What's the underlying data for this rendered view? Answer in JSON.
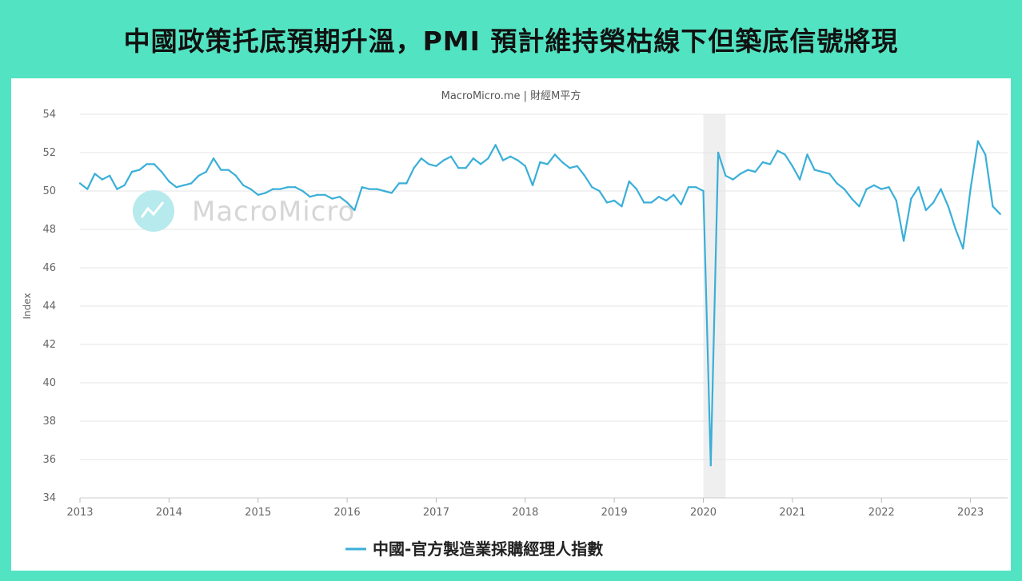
{
  "headline": "中國政策托底預期升溫，PMI 預計維持榮枯線下但築底信號將現",
  "source_label": "MacroMicro.me | 財經M平方",
  "watermark": "MacroMicro",
  "colors": {
    "background": "#52e3c2",
    "series": "#3aafd8",
    "recession_band": "#efefef",
    "grid": "#e6e6e6"
  },
  "chart_data": {
    "type": "line",
    "title": "",
    "xlabel": "",
    "ylabel": "Index",
    "ylim": [
      34,
      54
    ],
    "yticks": [
      34,
      36,
      38,
      40,
      42,
      44,
      46,
      48,
      50,
      52,
      54
    ],
    "xticks": [
      "2013",
      "2014",
      "2015",
      "2016",
      "2017",
      "2018",
      "2019",
      "2020",
      "2021",
      "2022",
      "2023"
    ],
    "xlim": [
      "2013-01",
      "2023-06"
    ],
    "shaded_periods": [
      {
        "start": "2020-01",
        "end": "2020-04"
      }
    ],
    "legend_position": "bottom-center",
    "grid": true,
    "series": [
      {
        "name": "中國-官方製造業採購經理人指數",
        "color": "#3aafd8",
        "points": [
          [
            "2013-01",
            50.4
          ],
          [
            "2013-02",
            50.1
          ],
          [
            "2013-03",
            50.9
          ],
          [
            "2013-04",
            50.6
          ],
          [
            "2013-05",
            50.8
          ],
          [
            "2013-06",
            50.1
          ],
          [
            "2013-07",
            50.3
          ],
          [
            "2013-08",
            51.0
          ],
          [
            "2013-09",
            51.1
          ],
          [
            "2013-10",
            51.4
          ],
          [
            "2013-11",
            51.4
          ],
          [
            "2013-12",
            51.0
          ],
          [
            "2014-01",
            50.5
          ],
          [
            "2014-02",
            50.2
          ],
          [
            "2014-03",
            50.3
          ],
          [
            "2014-04",
            50.4
          ],
          [
            "2014-05",
            50.8
          ],
          [
            "2014-06",
            51.0
          ],
          [
            "2014-07",
            51.7
          ],
          [
            "2014-08",
            51.1
          ],
          [
            "2014-09",
            51.1
          ],
          [
            "2014-10",
            50.8
          ],
          [
            "2014-11",
            50.3
          ],
          [
            "2014-12",
            50.1
          ],
          [
            "2015-01",
            49.8
          ],
          [
            "2015-02",
            49.9
          ],
          [
            "2015-03",
            50.1
          ],
          [
            "2015-04",
            50.1
          ],
          [
            "2015-05",
            50.2
          ],
          [
            "2015-06",
            50.2
          ],
          [
            "2015-07",
            50.0
          ],
          [
            "2015-08",
            49.7
          ],
          [
            "2015-09",
            49.8
          ],
          [
            "2015-10",
            49.8
          ],
          [
            "2015-11",
            49.6
          ],
          [
            "2015-12",
            49.7
          ],
          [
            "2016-01",
            49.4
          ],
          [
            "2016-02",
            49.0
          ],
          [
            "2016-03",
            50.2
          ],
          [
            "2016-04",
            50.1
          ],
          [
            "2016-05",
            50.1
          ],
          [
            "2016-06",
            50.0
          ],
          [
            "2016-07",
            49.9
          ],
          [
            "2016-08",
            50.4
          ],
          [
            "2016-09",
            50.4
          ],
          [
            "2016-10",
            51.2
          ],
          [
            "2016-11",
            51.7
          ],
          [
            "2016-12",
            51.4
          ],
          [
            "2017-01",
            51.3
          ],
          [
            "2017-02",
            51.6
          ],
          [
            "2017-03",
            51.8
          ],
          [
            "2017-04",
            51.2
          ],
          [
            "2017-05",
            51.2
          ],
          [
            "2017-06",
            51.7
          ],
          [
            "2017-07",
            51.4
          ],
          [
            "2017-08",
            51.7
          ],
          [
            "2017-09",
            52.4
          ],
          [
            "2017-10",
            51.6
          ],
          [
            "2017-11",
            51.8
          ],
          [
            "2017-12",
            51.6
          ],
          [
            "2018-01",
            51.3
          ],
          [
            "2018-02",
            50.3
          ],
          [
            "2018-03",
            51.5
          ],
          [
            "2018-04",
            51.4
          ],
          [
            "2018-05",
            51.9
          ],
          [
            "2018-06",
            51.5
          ],
          [
            "2018-07",
            51.2
          ],
          [
            "2018-08",
            51.3
          ],
          [
            "2018-09",
            50.8
          ],
          [
            "2018-10",
            50.2
          ],
          [
            "2018-11",
            50.0
          ],
          [
            "2018-12",
            49.4
          ],
          [
            "2019-01",
            49.5
          ],
          [
            "2019-02",
            49.2
          ],
          [
            "2019-03",
            50.5
          ],
          [
            "2019-04",
            50.1
          ],
          [
            "2019-05",
            49.4
          ],
          [
            "2019-06",
            49.4
          ],
          [
            "2019-07",
            49.7
          ],
          [
            "2019-08",
            49.5
          ],
          [
            "2019-09",
            49.8
          ],
          [
            "2019-10",
            49.3
          ],
          [
            "2019-11",
            50.2
          ],
          [
            "2019-12",
            50.2
          ],
          [
            "2020-01",
            50.0
          ],
          [
            "2020-02",
            35.7
          ],
          [
            "2020-03",
            52.0
          ],
          [
            "2020-04",
            50.8
          ],
          [
            "2020-05",
            50.6
          ],
          [
            "2020-06",
            50.9
          ],
          [
            "2020-07",
            51.1
          ],
          [
            "2020-08",
            51.0
          ],
          [
            "2020-09",
            51.5
          ],
          [
            "2020-10",
            51.4
          ],
          [
            "2020-11",
            52.1
          ],
          [
            "2020-12",
            51.9
          ],
          [
            "2021-01",
            51.3
          ],
          [
            "2021-02",
            50.6
          ],
          [
            "2021-03",
            51.9
          ],
          [
            "2021-04",
            51.1
          ],
          [
            "2021-05",
            51.0
          ],
          [
            "2021-06",
            50.9
          ],
          [
            "2021-07",
            50.4
          ],
          [
            "2021-08",
            50.1
          ],
          [
            "2021-09",
            49.6
          ],
          [
            "2021-10",
            49.2
          ],
          [
            "2021-11",
            50.1
          ],
          [
            "2021-12",
            50.3
          ],
          [
            "2022-01",
            50.1
          ],
          [
            "2022-02",
            50.2
          ],
          [
            "2022-03",
            49.5
          ],
          [
            "2022-04",
            47.4
          ],
          [
            "2022-05",
            49.6
          ],
          [
            "2022-06",
            50.2
          ],
          [
            "2022-07",
            49.0
          ],
          [
            "2022-08",
            49.4
          ],
          [
            "2022-09",
            50.1
          ],
          [
            "2022-10",
            49.2
          ],
          [
            "2022-11",
            48.0
          ],
          [
            "2022-12",
            47.0
          ],
          [
            "2023-01",
            50.1
          ],
          [
            "2023-02",
            52.6
          ],
          [
            "2023-03",
            51.9
          ],
          [
            "2023-04",
            49.2
          ],
          [
            "2023-05",
            48.8
          ]
        ]
      }
    ]
  }
}
